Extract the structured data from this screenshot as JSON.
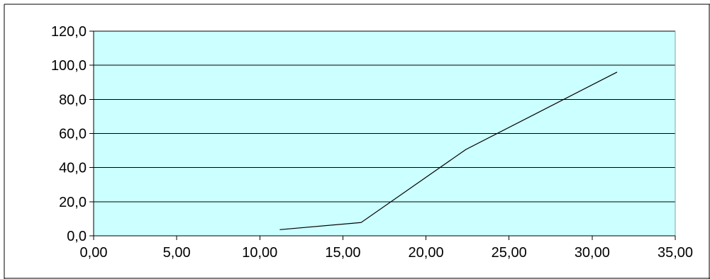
{
  "colors": {
    "background": "#ffffff",
    "plot_background": "#ccffff",
    "gridline": "#000000",
    "axis": "#000000",
    "series_line": "#000000",
    "frame": "#000000"
  },
  "chart_data": {
    "type": "line",
    "title": "",
    "xlabel": "",
    "ylabel": "",
    "xlim": [
      0,
      35
    ],
    "ylim": [
      0,
      120
    ],
    "grid": {
      "horizontal": true,
      "vertical": false
    },
    "legend": "none",
    "x_ticks": [
      0,
      5,
      10,
      15,
      20,
      25,
      30,
      35
    ],
    "y_ticks": [
      0,
      20,
      40,
      60,
      80,
      100,
      120
    ],
    "x_tick_labels": [
      "0,00",
      "5,00",
      "10,00",
      "15,00",
      "20,00",
      "25,00",
      "30,00",
      "35,00"
    ],
    "y_tick_labels": [
      "0,0",
      "20,0",
      "40,0",
      "60,0",
      "80,0",
      "100,0",
      "120,0"
    ],
    "series": [
      {
        "x": [
          11.2,
          16.1,
          22.4,
          31.5
        ],
        "y": [
          3.6,
          7.8,
          50.6,
          96.0
        ]
      }
    ]
  }
}
